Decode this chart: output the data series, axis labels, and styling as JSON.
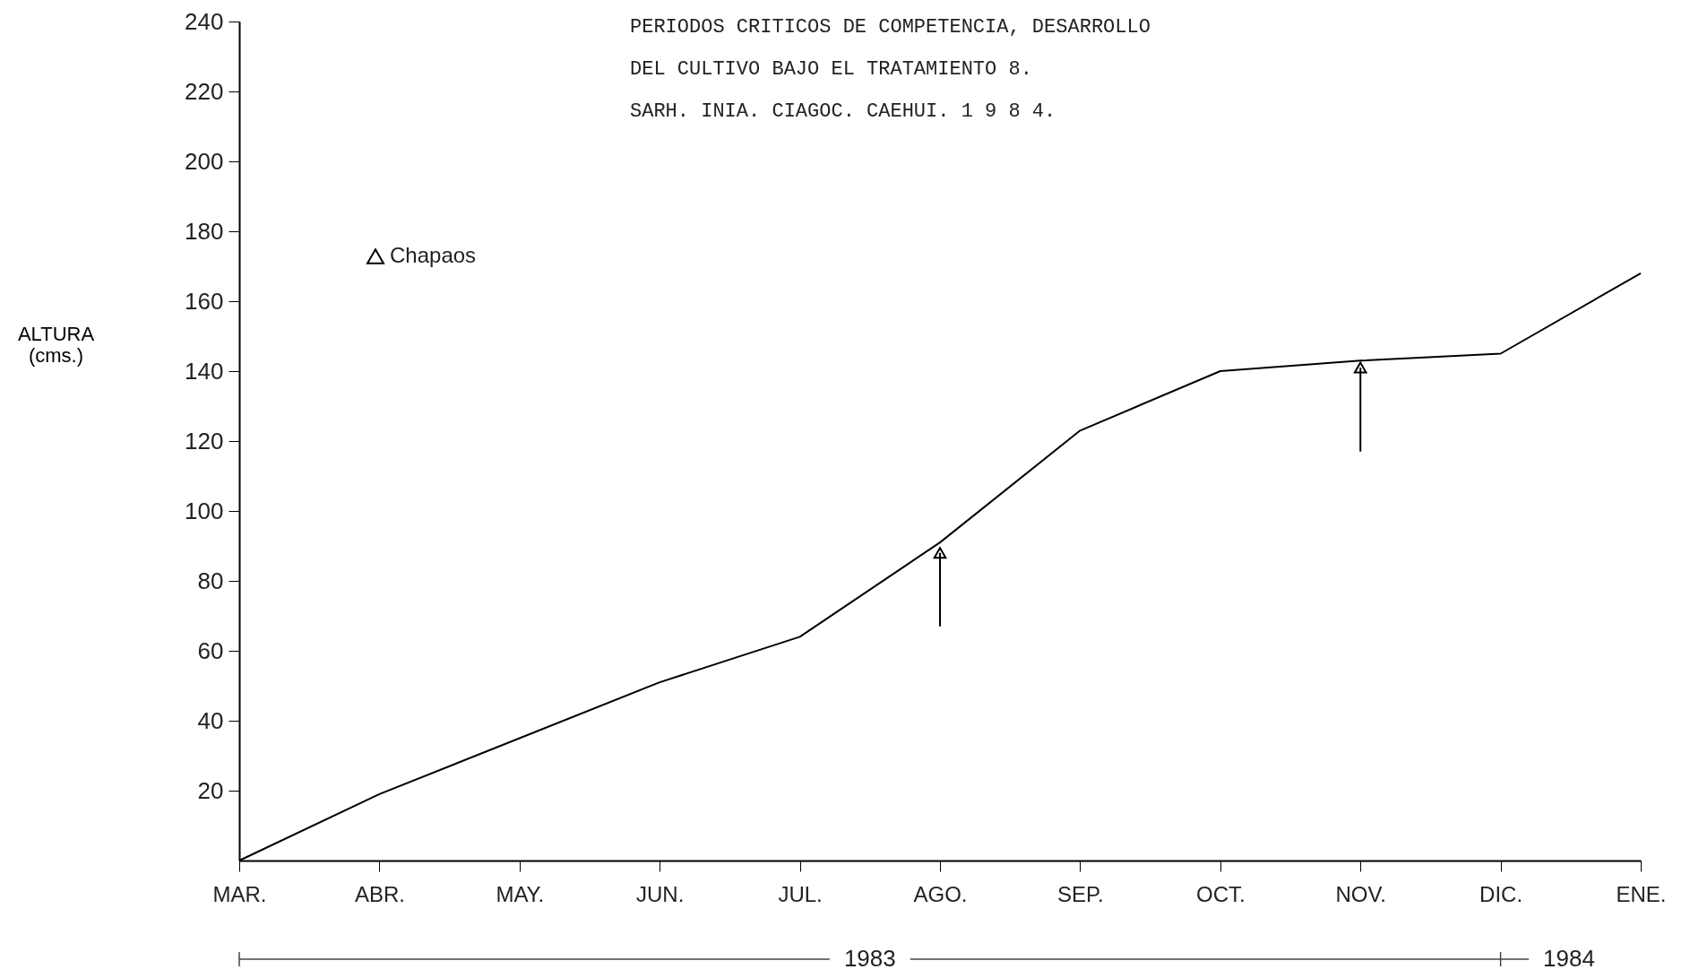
{
  "chart_data": {
    "type": "line",
    "title": "PERIODOS CRITICOS DE COMPETENCIA, DESARROLLO\nDEL CULTIVO BAJO EL TRATAMIENTO 8.",
    "subtitle": "SARH. INIA. CIAGOC. CAEHUI. 1 9 8 4.",
    "ylabel": "ALTURA\n(cms.)",
    "categories": [
      "MAR.",
      "ABR.",
      "MAY.",
      "JUN.",
      "JUL.",
      "AGO.",
      "SEP.",
      "OCT.",
      "NOV.",
      "DIC.",
      "ENE."
    ],
    "ylim": [
      0,
      240
    ],
    "yticks": [
      20,
      40,
      60,
      80,
      100,
      120,
      140,
      160,
      180,
      200,
      220,
      240
    ],
    "grid": false,
    "legend": "top left",
    "annotations": [
      "1983",
      "1984"
    ],
    "series": [
      {
        "color": "#000000",
        "values": [
          0,
          19,
          35,
          51,
          64,
          91,
          123,
          140,
          143,
          145,
          168
        ]
      },
      {
        "name": "Chapaos",
        "type": "scatter",
        "marker": "triangle",
        "color": "#000000",
        "x": [
          "AGO.",
          "NOV."
        ],
        "values": [
          88,
          141
        ],
        "errors": [
          [
            67,
            88
          ],
          [
            117,
            141
          ]
        ]
      }
    ]
  }
}
